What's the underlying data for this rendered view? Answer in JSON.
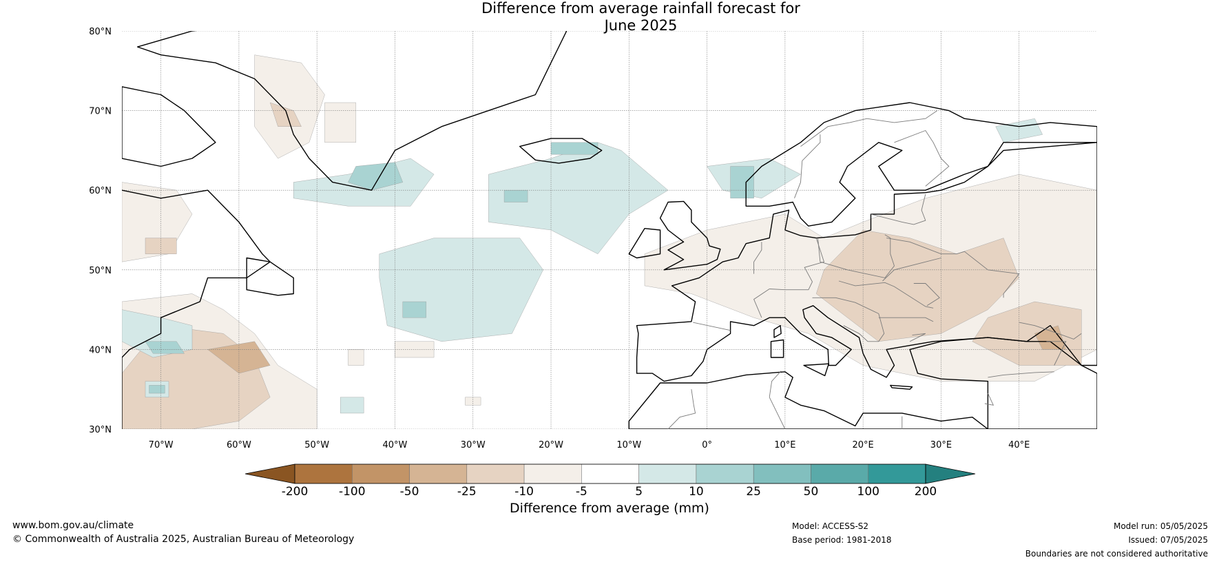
{
  "title": {
    "line1": "Difference from average rainfall forecast for",
    "line2": "June 2025"
  },
  "map": {
    "region": "North Atlantic and Europe",
    "lon_range": [
      -75,
      50
    ],
    "lat_range": [
      30,
      80
    ],
    "lat_labels": [
      "30°N",
      "40°N",
      "50°N",
      "60°N",
      "70°N",
      "80°N"
    ],
    "lat_values": [
      30,
      40,
      50,
      60,
      70,
      80
    ],
    "lon_labels": [
      "70°W",
      "60°W",
      "50°W",
      "40°W",
      "30°W",
      "20°W",
      "10°W",
      "0°",
      "10°E",
      "20°E",
      "30°E",
      "40°E"
    ],
    "lon_values": [
      -70,
      -60,
      -50,
      -40,
      -30,
      -20,
      -10,
      0,
      10,
      20,
      30,
      40
    ],
    "gridlines": true
  },
  "colorbar": {
    "title": "Difference from average (mm)",
    "tick_labels": [
      "-200",
      "-100",
      "-50",
      "-25",
      "-10",
      "-5",
      "5",
      "10",
      "25",
      "50",
      "100",
      "200"
    ],
    "colors": [
      "#8a5522",
      "#ad743e",
      "#c29467",
      "#d5b494",
      "#e6d3c2",
      "#f4efe9",
      "#ffffff",
      "#d4e8e7",
      "#a9d3d2",
      "#82bfbe",
      "#5aaaa9",
      "#339999",
      "#24807f"
    ]
  },
  "footer": {
    "website": "www.bom.gov.au/climate",
    "copyright": "© Commonwealth of Australia 2025, Australian Bureau of Meteorology",
    "model": "Model: ACCESS-S2",
    "base_period": "Base period: 1981-2018",
    "model_run": "Model run: 05/05/2025",
    "issued": "Issued: 07/05/2025",
    "disclaimer": "Boundaries are not considered authoritative"
  }
}
